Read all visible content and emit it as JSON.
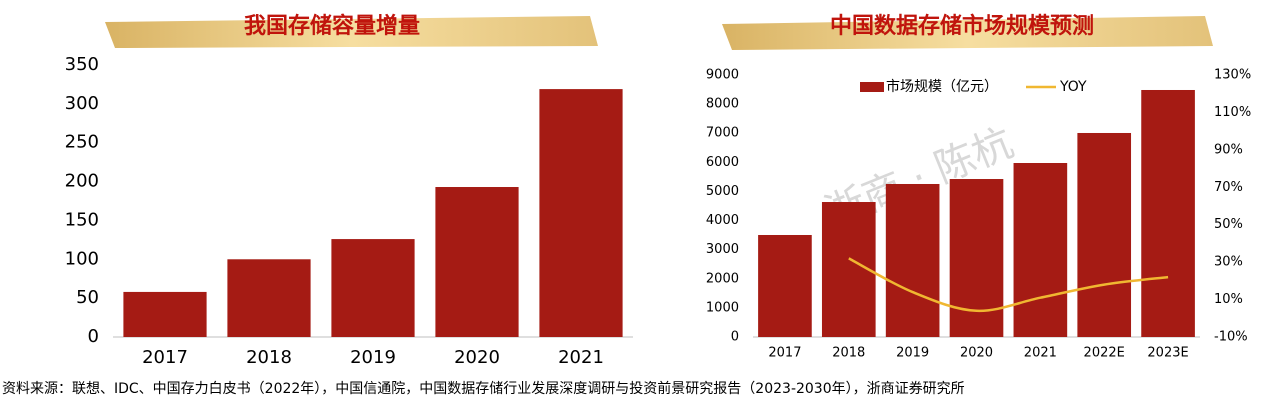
{
  "chart_data": [
    {
      "type": "bar",
      "title": "我国存储容量增量",
      "categories": [
        "2017",
        "2018",
        "2019",
        "2020",
        "2021"
      ],
      "values": [
        58,
        100,
        126,
        193,
        319
      ],
      "color": "#a51b14",
      "ylim": [
        0,
        350
      ],
      "yticks": [
        0,
        50,
        100,
        150,
        200,
        250,
        300,
        350
      ],
      "grid": false
    },
    {
      "type": "bar-line",
      "title": "中国数据存储市场规模预测",
      "categories": [
        "2017",
        "2018",
        "2019",
        "2020",
        "2021",
        "2022E",
        "2023E"
      ],
      "series": [
        {
          "name": "市场规模（亿元）",
          "color": "#a51b14",
          "values": [
            3504,
            4637,
            5256,
            5427,
            5977,
            7008,
            8485
          ]
        },
        {
          "name": "YOY",
          "color": "#f0b731",
          "axis": "y2",
          "values": [
            null,
            32,
            14,
            4,
            11,
            18,
            22
          ]
        }
      ],
      "ylim": [
        0,
        9000
      ],
      "yticks": [
        0,
        1000,
        2000,
        3000,
        4000,
        5000,
        6000,
        7000,
        8000,
        9000
      ],
      "y2lim": [
        -10,
        130
      ],
      "y2ticks": [
        {
          "value": -10,
          "label": "-10%"
        },
        {
          "value": 10,
          "label": "10%"
        },
        {
          "value": 30,
          "label": "30%"
        },
        {
          "value": 50,
          "label": "50%"
        },
        {
          "value": 70,
          "label": "70%"
        },
        {
          "value": 90,
          "label": "90%"
        },
        {
          "value": 110,
          "label": "110%"
        },
        {
          "value": 130,
          "label": "130%"
        }
      ],
      "grid": false,
      "legend": "top"
    }
  ],
  "watermark": "浙商 · 陈杭",
  "source": "资料来源：联想、IDC、中国存力白皮书（2022年），中国信通院，中国数据存储行业发展深度调研与投资前景研究报告（2023-2030年），浙商证券研究所"
}
